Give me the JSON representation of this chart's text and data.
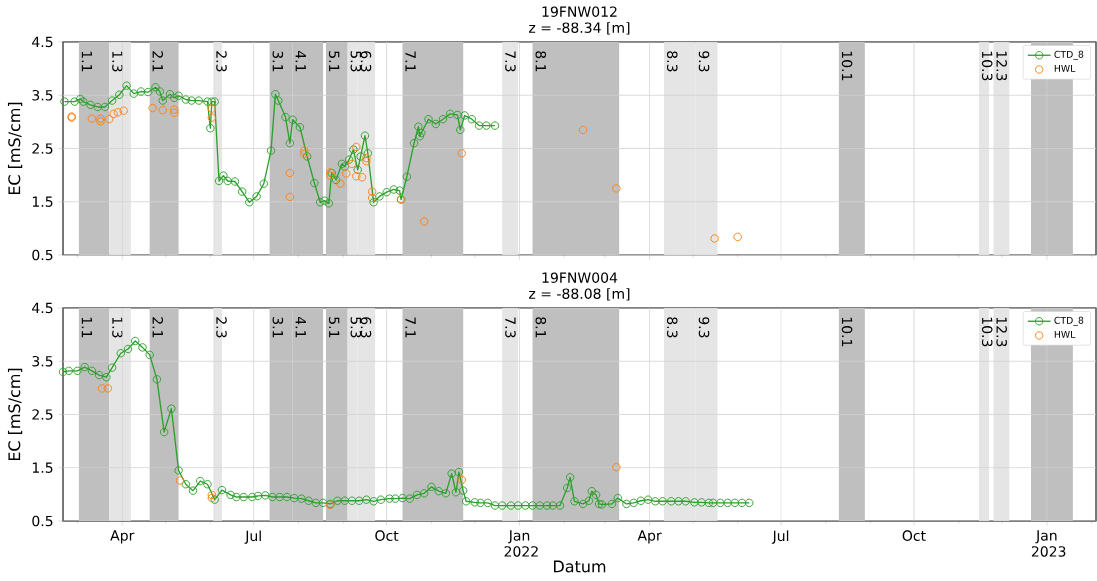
{
  "chart_data": [
    {
      "type": "line",
      "title": "19FNW012",
      "subtitle": "z = -88.34 [m]",
      "ylabel": "EC [mS/cm]",
      "xlim": [
        "2021-02-19",
        "2023-02-04"
      ],
      "ylim": [
        0.5,
        4.5
      ],
      "yticks": [
        0.5,
        1.5,
        2.5,
        3.5,
        4.5
      ],
      "xticks": [
        {
          "value": "2021-03",
          "label": null
        },
        "2021-04",
        {
          "value": "2021-05",
          "label": null
        },
        {
          "value": "2021-06",
          "label": null
        },
        "2021-07",
        {
          "value": "2021-08",
          "label": null
        },
        {
          "value": "2021-09",
          "label": null
        },
        "2021-10",
        {
          "value": "2021-11",
          "label": null
        },
        {
          "value": "2021-12",
          "label": null
        },
        "2022-01",
        {
          "value": "2022-02",
          "label": null
        },
        {
          "value": "2022-03",
          "label": null
        },
        "2022-04",
        {
          "value": "2022-05",
          "label": null
        },
        {
          "value": "2022-06",
          "label": null
        },
        "2022-07",
        {
          "value": "2022-08",
          "label": null
        },
        {
          "value": "2022-09",
          "label": null
        },
        "2022-10",
        {
          "value": "2022-11",
          "label": null
        },
        {
          "value": "2022-12",
          "label": null
        },
        "2023-01",
        {
          "value": "2023-02",
          "label": null
        }
      ],
      "tick_labels": "y",
      "grid": true,
      "legend": "top right",
      "marker": "circle",
      "bands": [
        {
          "axis": "x",
          "from": "2021-03-02",
          "to": "2021-03-23",
          "label": "1.1",
          "color": "#bfbfbf"
        },
        {
          "axis": "x",
          "from": "2021-03-23",
          "to": "2021-04-07",
          "label": "1.3",
          "color": "#e5e5e5"
        },
        {
          "axis": "x",
          "from": "2021-04-20",
          "to": "2021-05-10",
          "label": "2.1",
          "color": "#bfbfbf"
        },
        {
          "axis": "x",
          "from": "2021-06-03",
          "to": "2021-06-09",
          "label": "2.3",
          "color": "#e5e5e5"
        },
        {
          "axis": "x",
          "from": "2021-07-12",
          "to": "2021-07-28",
          "label": "3.1",
          "color": "#bfbfbf"
        },
        {
          "axis": "x",
          "from": "2021-07-28",
          "to": "2021-08-18",
          "label": "4.1",
          "color": "#bfbfbf"
        },
        {
          "axis": "x",
          "from": "2021-08-20",
          "to": "2021-09-04",
          "label": "5.1",
          "color": "#bfbfbf"
        },
        {
          "axis": "x",
          "from": "2021-09-04",
          "to": "2021-09-11",
          "label": "5.3",
          "color": "#e5e5e5"
        },
        {
          "axis": "x",
          "from": "2021-09-11",
          "to": "2021-09-23",
          "label": "6.3",
          "color": "#e5e5e5"
        },
        {
          "axis": "x",
          "from": "2021-10-12",
          "to": "2021-11-23",
          "label": "7.1",
          "color": "#bfbfbf"
        },
        {
          "axis": "x",
          "from": "2021-12-20",
          "to": "2021-12-31",
          "label": "7.3",
          "color": "#e5e5e5"
        },
        {
          "axis": "x",
          "from": "2022-01-10",
          "to": "2022-03-11",
          "label": "8.1",
          "color": "#bfbfbf"
        },
        {
          "axis": "x",
          "from": "2022-04-11",
          "to": "2022-05-03",
          "label": "8.3",
          "color": "#e5e5e5"
        },
        {
          "axis": "x",
          "from": "2022-05-03",
          "to": "2022-05-18",
          "label": "9.3",
          "color": "#e5e5e5"
        },
        {
          "axis": "x",
          "from": "2022-08-10",
          "to": "2022-08-28",
          "label": "10.1",
          "color": "#bfbfbf"
        },
        {
          "axis": "x",
          "from": "2022-11-15",
          "to": "2022-11-22",
          "label": "10.3",
          "color": "#e5e5e5"
        },
        {
          "axis": "x",
          "from": "2022-11-25",
          "to": "2022-12-06",
          "label": "12.3",
          "color": "#e5e5e5"
        },
        {
          "axis": "x",
          "from": "2022-12-21",
          "to": "2023-01-19",
          "label": null,
          "color": "#bfbfbf"
        }
      ],
      "series": [
        {
          "name": "CTD_8",
          "color": "#2ca02c",
          "x": [
            "2021-02-20",
            "2021-02-27",
            "2021-03-03",
            "2021-03-05",
            "2021-03-10",
            "2021-03-15",
            "2021-03-20",
            "2021-03-25",
            "2021-03-30",
            "2021-04-04",
            "2021-04-09",
            "2021-04-14",
            "2021-04-19",
            "2021-04-24",
            "2021-04-27",
            "2021-04-29",
            "2021-05-04",
            "2021-05-07",
            "2021-05-10",
            "2021-05-15",
            "2021-05-19",
            "2021-05-24",
            "2021-05-30",
            "2021-06-01",
            "2021-06-02",
            "2021-06-04",
            "2021-06-07",
            "2021-06-10",
            "2021-06-13",
            "2021-06-18",
            "2021-06-23",
            "2021-06-28",
            "2021-07-03",
            "2021-07-08",
            "2021-07-13",
            "2021-07-16",
            "2021-07-18",
            "2021-07-23",
            "2021-07-26",
            "2021-07-28",
            "2021-08-02",
            "2021-08-07",
            "2021-08-12",
            "2021-08-16",
            "2021-08-19",
            "2021-08-22",
            "2021-08-24",
            "2021-08-27",
            "2021-08-31",
            "2021-09-02",
            "2021-09-05",
            "2021-09-08",
            "2021-09-11",
            "2021-09-13",
            "2021-09-16",
            "2021-09-18",
            "2021-09-22",
            "2021-09-26",
            "2021-10-01",
            "2021-10-06",
            "2021-10-10",
            "2021-10-11",
            "2021-10-15",
            "2021-10-20",
            "2021-10-23",
            "2021-10-24",
            "2021-10-25",
            "2021-10-30",
            "2021-11-04",
            "2021-11-09",
            "2021-11-14",
            "2021-11-19",
            "2021-11-21",
            "2021-11-24",
            "2021-11-29",
            "2021-12-04",
            "2021-12-09",
            "2021-12-15"
          ],
          "values": [
            3.38,
            3.38,
            3.43,
            3.38,
            3.32,
            3.28,
            3.28,
            3.4,
            3.51,
            3.68,
            3.53,
            3.57,
            3.56,
            3.65,
            3.57,
            3.4,
            3.52,
            3.45,
            3.49,
            3.42,
            3.4,
            3.4,
            3.38,
            2.88,
            3.38,
            3.38,
            1.89,
            1.99,
            1.89,
            1.88,
            1.69,
            1.49,
            1.6,
            1.84,
            2.46,
            3.52,
            3.4,
            3.09,
            2.6,
            3.04,
            2.9,
            2.35,
            1.85,
            1.49,
            1.52,
            1.47,
            2.04,
            1.91,
            2.21,
            2.16,
            2.29,
            2.48,
            2.1,
            2.35,
            2.74,
            2.41,
            1.49,
            1.6,
            1.68,
            1.73,
            1.71,
            1.54,
            1.97,
            2.6,
            2.91,
            2.73,
            2.79,
            3.05,
            2.96,
            3.05,
            3.15,
            3.13,
            2.85,
            3.12,
            3.05,
            2.93,
            2.93,
            2.93
          ]
        },
        {
          "name": "HWL",
          "type": "scatter",
          "color": "#ff7f0e",
          "x": [
            "2021-02-25",
            "2021-02-25",
            "2021-03-11",
            "2021-03-17",
            "2021-03-17",
            "2021-03-23",
            "2021-03-26",
            "2021-03-29",
            "2021-04-02",
            "2021-04-22",
            "2021-04-29",
            "2021-05-07",
            "2021-05-07",
            "2021-06-02",
            "2021-06-02",
            "2021-07-26",
            "2021-07-26",
            "2021-08-05",
            "2021-08-05",
            "2021-08-23",
            "2021-08-23",
            "2021-08-30",
            "2021-09-03",
            "2021-09-07",
            "2021-09-10",
            "2021-09-10",
            "2021-09-14",
            "2021-09-17",
            "2021-09-17",
            "2021-09-21",
            "2021-09-21",
            "2021-10-11",
            "2021-10-27",
            "2021-11-22",
            "2022-02-14",
            "2022-03-09",
            "2022-05-16",
            "2022-06-01"
          ],
          "values": [
            3.1,
            3.08,
            3.06,
            3.06,
            3.01,
            3.05,
            3.15,
            3.18,
            3.21,
            3.26,
            3.22,
            3.23,
            3.17,
            3.25,
            3.08,
            2.04,
            1.59,
            2.46,
            2.4,
            2.05,
            1.99,
            1.84,
            2.03,
            2.21,
            2.53,
            1.98,
            1.96,
            2.32,
            2.26,
            1.69,
            1.57,
            1.55,
            1.13,
            2.41,
            2.85,
            1.75,
            0.81,
            0.84
          ]
        }
      ]
    },
    {
      "type": "line",
      "title": "19FNW004",
      "subtitle": "z = -88.08 [m]",
      "ylabel": "EC [mS/cm]",
      "xlabel": "Datum",
      "xlim": [
        "2021-02-19",
        "2023-02-04"
      ],
      "ylim": [
        0.5,
        4.5
      ],
      "yticks": [
        0.5,
        1.5,
        2.5,
        3.5,
        4.5
      ],
      "xticks": [
        {
          "value": "2021-03",
          "label": null
        },
        {
          "value": "2021-04",
          "label": "Apr"
        },
        {
          "value": "2021-05",
          "label": null
        },
        {
          "value": "2021-06",
          "label": null
        },
        {
          "value": "2021-07",
          "label": "Jul"
        },
        {
          "value": "2021-08",
          "label": null
        },
        {
          "value": "2021-09",
          "label": null
        },
        {
          "value": "2021-10",
          "label": "Oct"
        },
        {
          "value": "2021-11",
          "label": null
        },
        {
          "value": "2021-12",
          "label": null
        },
        {
          "value": "2022-01",
          "label": "Jan 2022"
        },
        {
          "value": "2022-02",
          "label": null
        },
        {
          "value": "2022-03",
          "label": null
        },
        {
          "value": "2022-04",
          "label": "Apr"
        },
        {
          "value": "2022-05",
          "label": null
        },
        {
          "value": "2022-06",
          "label": null
        },
        {
          "value": "2022-07",
          "label": "Jul"
        },
        {
          "value": "2022-08",
          "label": null
        },
        {
          "value": "2022-09",
          "label": null
        },
        {
          "value": "2022-10",
          "label": "Oct"
        },
        {
          "value": "2022-11",
          "label": null
        },
        {
          "value": "2022-12",
          "label": null
        },
        {
          "value": "2023-01",
          "label": "Jan 2023"
        },
        {
          "value": "2023-02",
          "label": null
        }
      ],
      "grid": true,
      "legend": "top right",
      "marker": "circle",
      "bands": [
        {
          "axis": "x",
          "from": "2021-03-02",
          "to": "2021-03-23",
          "label": "1.1",
          "color": "#bfbfbf"
        },
        {
          "axis": "x",
          "from": "2021-03-23",
          "to": "2021-04-07",
          "label": "1.3",
          "color": "#e5e5e5"
        },
        {
          "axis": "x",
          "from": "2021-04-20",
          "to": "2021-05-10",
          "label": "2.1",
          "color": "#bfbfbf"
        },
        {
          "axis": "x",
          "from": "2021-06-03",
          "to": "2021-06-09",
          "label": "2.3",
          "color": "#e5e5e5"
        },
        {
          "axis": "x",
          "from": "2021-07-12",
          "to": "2021-07-28",
          "label": "3.1",
          "color": "#bfbfbf"
        },
        {
          "axis": "x",
          "from": "2021-07-28",
          "to": "2021-08-18",
          "label": "4.1",
          "color": "#bfbfbf"
        },
        {
          "axis": "x",
          "from": "2021-08-20",
          "to": "2021-09-04",
          "label": "5.1",
          "color": "#bfbfbf"
        },
        {
          "axis": "x",
          "from": "2021-09-04",
          "to": "2021-09-11",
          "label": "5.3",
          "color": "#e5e5e5"
        },
        {
          "axis": "x",
          "from": "2021-09-11",
          "to": "2021-09-23",
          "label": "6.3",
          "color": "#e5e5e5"
        },
        {
          "axis": "x",
          "from": "2021-10-12",
          "to": "2021-11-23",
          "label": "7.1",
          "color": "#bfbfbf"
        },
        {
          "axis": "x",
          "from": "2021-12-20",
          "to": "2021-12-31",
          "label": "7.3",
          "color": "#e5e5e5"
        },
        {
          "axis": "x",
          "from": "2022-01-10",
          "to": "2022-03-11",
          "label": "8.1",
          "color": "#bfbfbf"
        },
        {
          "axis": "x",
          "from": "2022-04-11",
          "to": "2022-05-03",
          "label": "8.3",
          "color": "#e5e5e5"
        },
        {
          "axis": "x",
          "from": "2022-05-03",
          "to": "2022-05-18",
          "label": "9.3",
          "color": "#e5e5e5"
        },
        {
          "axis": "x",
          "from": "2022-08-10",
          "to": "2022-08-28",
          "label": "10.1",
          "color": "#bfbfbf"
        },
        {
          "axis": "x",
          "from": "2022-11-15",
          "to": "2022-11-22",
          "label": "10.3",
          "color": "#e5e5e5"
        },
        {
          "axis": "x",
          "from": "2022-11-25",
          "to": "2022-12-06",
          "label": "12.3",
          "color": "#e5e5e5"
        },
        {
          "axis": "x",
          "from": "2022-12-21",
          "to": "2023-01-19",
          "label": null,
          "color": "#bfbfbf"
        }
      ],
      "series": [
        {
          "name": "CTD_8",
          "color": "#2ca02c",
          "x": [
            "2021-02-19",
            "2021-02-23",
            "2021-03-01",
            "2021-03-06",
            "2021-03-11",
            "2021-03-16",
            "2021-03-21",
            "2021-03-25",
            "2021-03-31",
            "2021-04-05",
            "2021-04-10",
            "2021-04-15",
            "2021-04-20",
            "2021-04-25",
            "2021-04-30",
            "2021-05-05",
            "2021-05-10",
            "2021-05-15",
            "2021-05-20",
            "2021-05-25",
            "2021-05-30",
            "2021-06-04",
            "2021-06-09",
            "2021-06-15",
            "2021-06-19",
            "2021-06-24",
            "2021-06-30",
            "2021-07-04",
            "2021-07-09",
            "2021-07-14",
            "2021-07-19",
            "2021-07-24",
            "2021-07-29",
            "2021-08-03",
            "2021-08-08",
            "2021-08-13",
            "2021-08-18",
            "2021-08-23",
            "2021-08-28",
            "2021-09-02",
            "2021-09-07",
            "2021-09-12",
            "2021-09-17",
            "2021-09-22",
            "2021-09-27",
            "2021-10-03",
            "2021-10-07",
            "2021-10-12",
            "2021-10-17",
            "2021-10-22",
            "2021-10-27",
            "2021-11-01",
            "2021-11-06",
            "2021-11-11",
            "2021-11-15",
            "2021-11-18",
            "2021-11-20",
            "2021-11-23",
            "2021-11-25",
            "2021-12-01",
            "2021-12-05",
            "2021-12-10",
            "2021-12-15",
            "2021-12-20",
            "2021-12-26",
            "2021-12-31",
            "2022-01-05",
            "2022-01-10",
            "2022-01-15",
            "2022-01-20",
            "2022-01-24",
            "2022-01-29",
            "2022-02-03",
            "2022-02-05",
            "2022-02-08",
            "2022-02-14",
            "2022-02-18",
            "2022-02-20",
            "2022-02-23",
            "2022-02-25",
            "2022-02-27",
            "2022-03-06",
            "2022-03-10",
            "2022-03-16",
            "2022-03-21",
            "2022-03-26",
            "2022-03-31",
            "2022-04-05",
            "2022-04-10",
            "2022-04-16",
            "2022-04-21",
            "2022-04-26",
            "2022-05-02",
            "2022-05-07",
            "2022-05-12",
            "2022-05-15",
            "2022-05-20",
            "2022-05-25",
            "2022-05-30",
            "2022-06-04",
            "2022-06-09"
          ],
          "values": [
            3.3,
            3.32,
            3.32,
            3.39,
            3.32,
            3.24,
            3.2,
            3.38,
            3.65,
            3.73,
            3.88,
            3.76,
            3.62,
            3.16,
            2.17,
            2.61,
            1.45,
            1.19,
            1.07,
            1.25,
            1.19,
            0.9,
            1.08,
            0.99,
            0.95,
            0.95,
            0.95,
            0.97,
            0.98,
            0.95,
            0.95,
            0.95,
            0.93,
            0.92,
            0.88,
            0.84,
            0.84,
            0.82,
            0.88,
            0.88,
            0.88,
            0.88,
            0.9,
            0.87,
            0.9,
            0.92,
            0.92,
            0.93,
            0.92,
            0.99,
            1.02,
            1.14,
            1.06,
            1.02,
            1.39,
            1.04,
            1.42,
            1.07,
            0.87,
            0.85,
            0.84,
            0.84,
            0.79,
            0.79,
            0.79,
            0.79,
            0.79,
            0.79,
            0.79,
            0.79,
            0.79,
            0.79,
            1.12,
            1.32,
            0.87,
            0.82,
            0.88,
            1.06,
            0.99,
            0.82,
            0.81,
            0.82,
            0.93,
            0.82,
            0.84,
            0.88,
            0.9,
            0.87,
            0.87,
            0.87,
            0.87,
            0.87,
            0.85,
            0.85,
            0.84,
            0.84,
            0.84,
            0.84,
            0.84,
            0.84,
            0.84
          ]
        },
        {
          "name": "HWL",
          "type": "scatter",
          "color": "#ff7f0e",
          "x": [
            "2021-03-18",
            "2021-03-22",
            "2021-05-11",
            "2021-06-02",
            "2021-06-02",
            "2021-08-23",
            "2021-11-22",
            "2022-03-09"
          ],
          "values": [
            2.99,
            2.99,
            1.26,
            0.99,
            0.93,
            0.8,
            1.27,
            1.51
          ]
        }
      ]
    }
  ]
}
